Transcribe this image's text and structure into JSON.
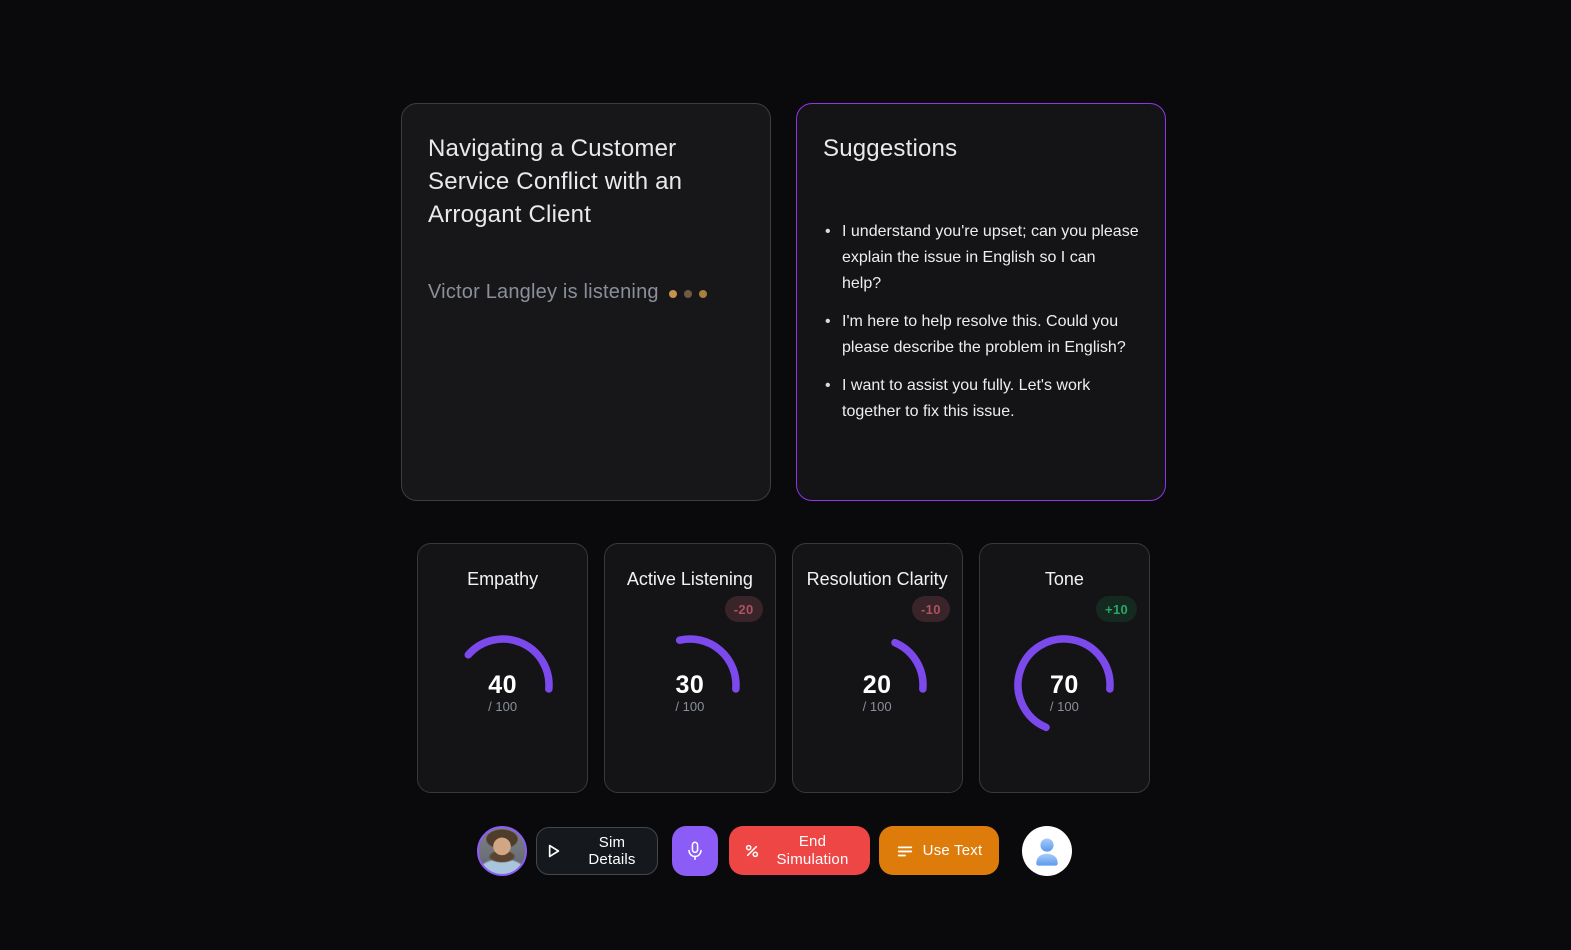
{
  "colors": {
    "page_background": "#0a0a0c",
    "gauge_arc": "#7c49ec",
    "suggestions_border": "#9333ea",
    "mic_button": "#8b5cf6",
    "end_button": "#ee4545",
    "use_text_button": "#dd7c0a",
    "badge_negative_text": "#ad5360",
    "badge_positive_text": "#2ca467"
  },
  "scenario_card": {
    "title": "Navigating a Customer Service Conflict with an Arrogant Client",
    "status_text": "Victor Langley is listening",
    "typing_dot_colors": [
      "#c3944c",
      "#6e5b40",
      "#a87f3f"
    ]
  },
  "suggestions_card": {
    "title": "Suggestions",
    "items": [
      "I understand you're upset; can you please explain the issue in English so I can help?",
      "I'm here to help resolve this. Could you please describe the problem in English?",
      "I want to assist you fully. Let's work together to fix this issue."
    ]
  },
  "metrics": [
    {
      "label": "Empathy",
      "value": 40,
      "max": 100,
      "delta": null
    },
    {
      "label": "Active Listening",
      "value": 30,
      "max": 100,
      "delta": "-20"
    },
    {
      "label": "Resolution Clarity",
      "value": 20,
      "max": 100,
      "delta": "-10"
    },
    {
      "label": "Tone",
      "value": 70,
      "max": 100,
      "delta": "+10"
    }
  ],
  "toolbar": {
    "sim_details_label": "Sim Details",
    "end_simulation_label": "End Simulation",
    "use_text_label": "Use Text"
  }
}
